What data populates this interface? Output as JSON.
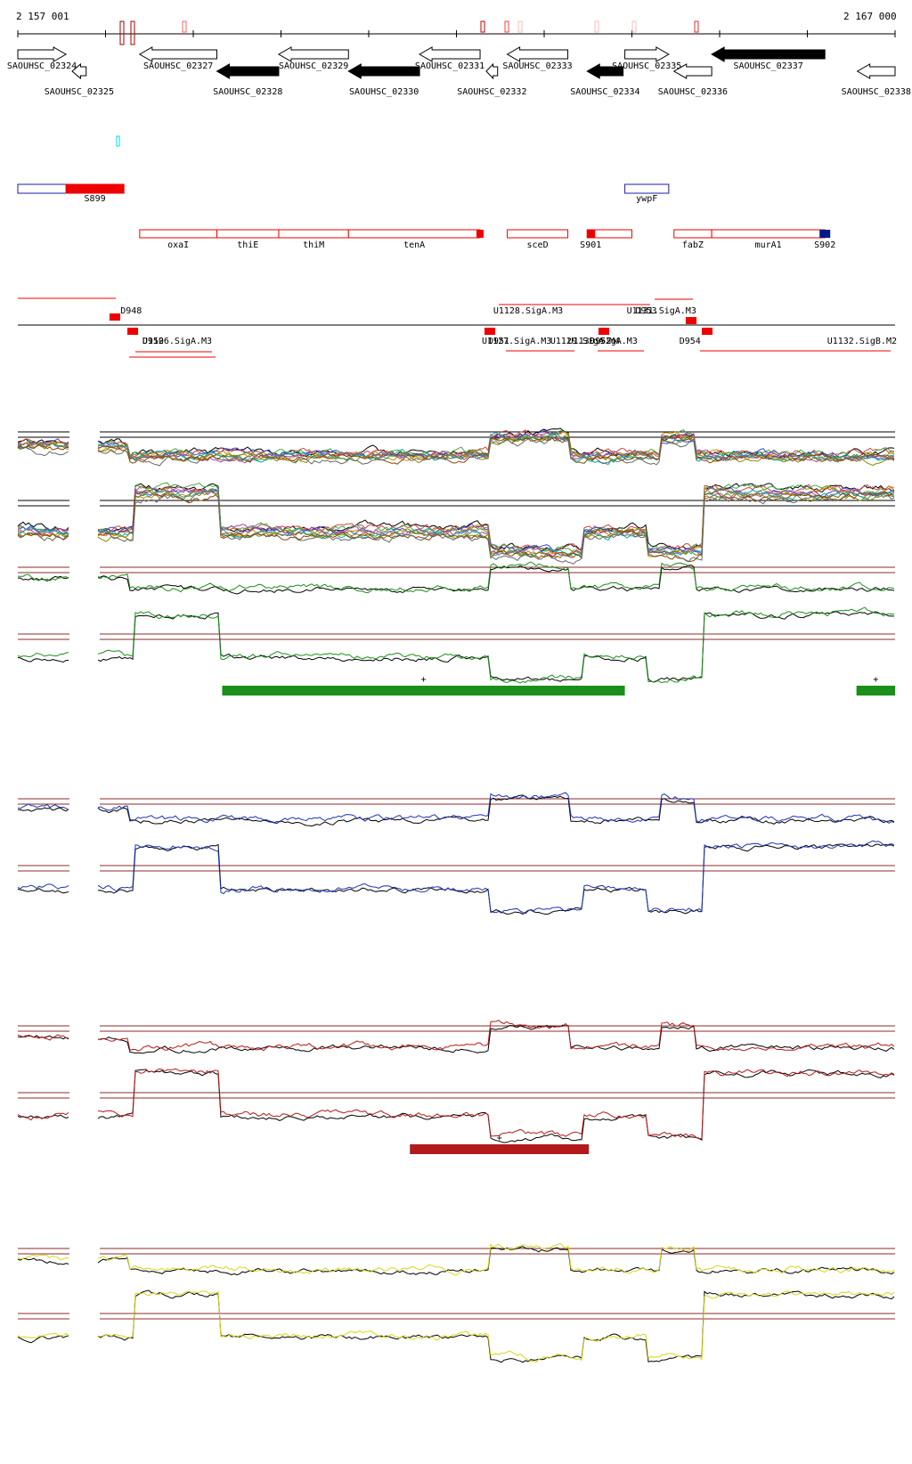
{
  "ruler": {
    "start_label": "2 157 001",
    "end_label": "2 167 000",
    "range": [
      2157001,
      2167000
    ]
  },
  "genes": [
    {
      "id": "SAOUHSC_02324",
      "strand": "+",
      "fill": "white",
      "start": 2157001,
      "end": 2157550
    },
    {
      "id": "SAOUHSC_02325",
      "strand": "-",
      "fill": "white",
      "start": 2157620,
      "end": 2157780
    },
    {
      "id": "SAOUHSC_02327",
      "strand": "-",
      "fill": "white",
      "start": 2158390,
      "end": 2159270
    },
    {
      "id": "SAOUHSC_02328",
      "strand": "-",
      "fill": "black",
      "start": 2159270,
      "end": 2159975
    },
    {
      "id": "SAOUHSC_02329",
      "strand": "-",
      "fill": "white",
      "start": 2159975,
      "end": 2160770
    },
    {
      "id": "SAOUHSC_02330",
      "strand": "-",
      "fill": "black",
      "start": 2160770,
      "end": 2161580
    },
    {
      "id": "SAOUHSC_02331",
      "strand": "-",
      "fill": "white",
      "start": 2161580,
      "end": 2162270
    },
    {
      "id": "SAOUHSC_02332",
      "strand": "-",
      "fill": "white",
      "start": 2162340,
      "end": 2162470
    },
    {
      "id": "SAOUHSC_02333",
      "strand": "-",
      "fill": "white",
      "start": 2162580,
      "end": 2163270
    },
    {
      "id": "SAOUHSC_02334",
      "strand": "-",
      "fill": "black",
      "start": 2163490,
      "end": 2163900
    },
    {
      "id": "SAOUHSC_02335",
      "strand": "+",
      "fill": "white",
      "start": 2163920,
      "end": 2164420
    },
    {
      "id": "SAOUHSC_02336",
      "strand": "-",
      "fill": "white",
      "start": 2164480,
      "end": 2164910
    },
    {
      "id": "SAOUHSC_02337",
      "strand": "-",
      "fill": "black",
      "start": 2164910,
      "end": 2166200
    },
    {
      "id": "SAOUHSC_02338",
      "strand": "-",
      "fill": "white",
      "start": 2166570,
      "end": 2167000
    }
  ],
  "annotations": {
    "ncrna": [
      {
        "name": "S899",
        "start": 2157001,
        "end": 2158210,
        "filled_from": 2157550
      },
      {
        "name": "ywpF",
        "start": 2163920,
        "end": 2164420,
        "filled_from": null
      }
    ],
    "operon_labels": [
      {
        "name": "oxaI",
        "start": 2158390,
        "end": 2159270
      },
      {
        "name": "thiE",
        "start": 2159270,
        "end": 2159975
      },
      {
        "name": "thiM",
        "start": 2159975,
        "end": 2160770
      },
      {
        "name": "tenA",
        "start": 2160770,
        "end": 2162270
      },
      {
        "name": "sceD",
        "start": 2162580,
        "end": 2163270
      },
      {
        "name": "S901",
        "start": 2163490,
        "end": 2164000
      },
      {
        "name": "fabZ",
        "start": 2164480,
        "end": 2164910
      },
      {
        "name": "murA1",
        "start": 2164910,
        "end": 2166200
      },
      {
        "name": "S902",
        "start": 2166200,
        "end": 2166200
      }
    ]
  },
  "transcription_units": [
    {
      "name": "D948",
      "pos": 2158150,
      "row": "above"
    },
    {
      "name": "D950",
      "pos": 2158400,
      "row": "below"
    },
    {
      "name": "U1126.SigA.M3",
      "pos": 2158400,
      "row": "below"
    },
    {
      "name": "U1127.SigA.M3",
      "pos": 2162270,
      "row": "below"
    },
    {
      "name": "D951",
      "pos": 2162340,
      "row": "below"
    },
    {
      "name": "U1128.SigA.M3",
      "pos": 2162400,
      "row": "above"
    },
    {
      "name": "U1129.SigA.M4",
      "pos": 2163050,
      "row": "below"
    },
    {
      "name": "U1130.SigA.M3",
      "pos": 2163250,
      "row": "below"
    },
    {
      "name": "D952",
      "pos": 2163500,
      "row": "below"
    },
    {
      "name": "U1131.SigA.M3",
      "pos": 2163920,
      "row": "above"
    },
    {
      "name": "D953",
      "pos": 2164020,
      "row": "above"
    },
    {
      "name": "D954",
      "pos": 2164520,
      "row": "below"
    },
    {
      "name": "U1132.SigB.M2",
      "pos": 2167000,
      "row": "below"
    }
  ],
  "panels": [
    {
      "name": "multi-condition",
      "color": "#888888",
      "segments": []
    },
    {
      "name": "green",
      "color": "#1a8f1a",
      "segments": [
        {
          "start": 2159330,
          "end": 2163920,
          "mark": "+"
        },
        {
          "start": 2166560,
          "end": 2167000,
          "mark": "+"
        }
      ]
    },
    {
      "name": "blue",
      "color": "#1a33b3",
      "segments": []
    },
    {
      "name": "red",
      "color": "#b31a1a",
      "segments": [
        {
          "start": 2161470,
          "end": 2163510,
          "mark": "+"
        }
      ]
    },
    {
      "name": "yellow",
      "color": "#d6d61a",
      "segments": []
    }
  ],
  "colors": {
    "gene_outline": "#000000",
    "annotation": "#ee0000",
    "ncrna_outline": "#1a1aaa",
    "signal_ref": "#8b2b2b",
    "cyan_marker": "#00dddd"
  }
}
